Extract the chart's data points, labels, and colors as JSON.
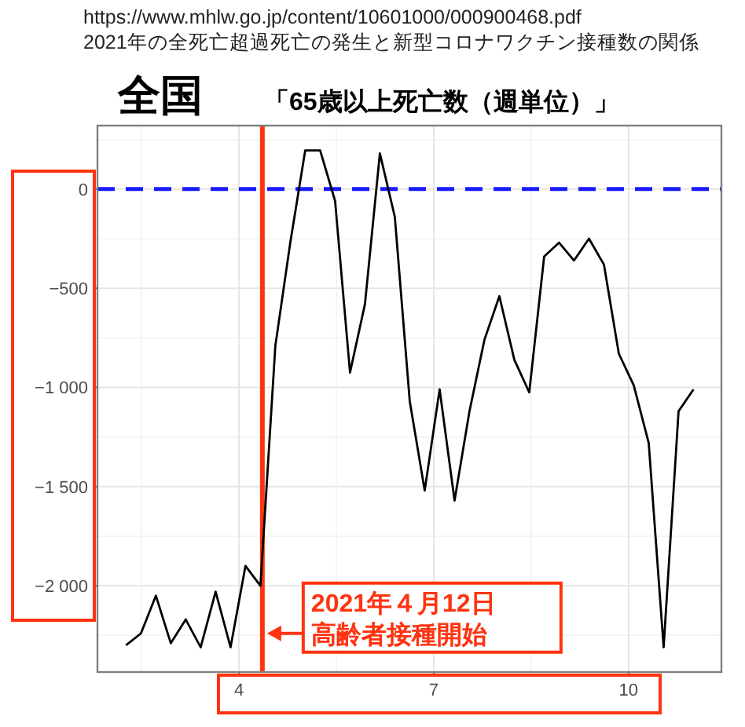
{
  "chart_data": {
    "type": "line",
    "title": "全国",
    "subtitle": "「65歳以上死亡数（週単位）」",
    "annotations": [
      "https://www.mhlw.go.jp/content/10601000/000900468.pdf",
      "2021年の全死亡超過死亡の発生と新型コロナワクチン接種数の関係",
      {
        "text": "2021年４月12日高齢者接種開始",
        "x": 4.36,
        "y": -2240
      }
    ],
    "series": [
      {
        "color": "#000000",
        "x": [
          2.26,
          2.49,
          2.72,
          2.95,
          3.18,
          3.41,
          3.64,
          3.87,
          4.1,
          4.33,
          4.56,
          4.79,
          5.02,
          5.25,
          5.48,
          5.71,
          5.94,
          6.17,
          6.4,
          6.63,
          6.86,
          7.09,
          7.32,
          7.55,
          7.78,
          8.01,
          8.24,
          8.47,
          8.7,
          8.93,
          9.16,
          9.39,
          9.62,
          9.85,
          10.08,
          10.31,
          10.54,
          10.77,
          11.0
        ],
        "values": [
          -2300,
          -2240,
          -2050,
          -2290,
          -2170,
          -2310,
          -2030,
          -2310,
          -1900,
          -2000,
          -790,
          -270,
          195,
          195,
          -60,
          -925,
          -580,
          180,
          -140,
          -1070,
          -1520,
          -1010,
          -1570,
          -1120,
          -760,
          -540,
          -860,
          -1025,
          -340,
          -270,
          -360,
          -250,
          -380,
          -830,
          -990,
          -1280,
          -2310,
          -1120,
          -1010
        ]
      }
    ],
    "xlim": [
      1.82,
      11.43
    ],
    "xticks": [
      4,
      7,
      10
    ],
    "ylim": [
      -2435,
      320
    ],
    "yticks": [
      {
        "value": -2000,
        "label": "−2 000"
      },
      {
        "value": -1500,
        "label": "−1 500"
      },
      {
        "value": -1000,
        "label": "−1 000"
      },
      {
        "value": -500,
        "label": "−500"
      },
      0
    ],
    "ref_lines": [
      {
        "axis": "y",
        "value": 0,
        "color": "#1a1aff",
        "line_style": "dashed"
      },
      {
        "axis": "x",
        "value": 4.36,
        "color": "#ff3311",
        "line_style": "solid"
      }
    ],
    "grid": true,
    "line_style": "solid",
    "marker": "none"
  }
}
